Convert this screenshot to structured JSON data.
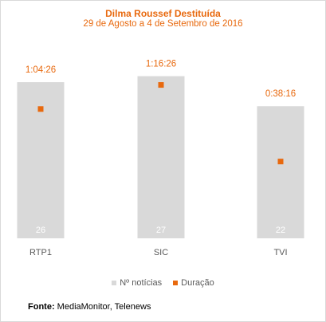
{
  "chart_data": {
    "type": "bar",
    "title": "Dilma Roussef Destituída",
    "subtitle": "29 de Agosto a 4 de Setembro de 2016",
    "categories": [
      "RTP1",
      "SIC",
      "TVI"
    ],
    "series": [
      {
        "name": "Nº notícias",
        "type": "bar",
        "values": [
          26,
          27,
          22
        ],
        "color": "#d9d9d9",
        "ylim": [
          0,
          28.4
        ]
      },
      {
        "name": "Duração",
        "type": "scatter",
        "labels": [
          "1:04:26",
          "1:16:26",
          "0:38:16"
        ],
        "values_seconds": [
          3866,
          4586,
          2296
        ],
        "color": "#e8690e",
        "ylim": [
          0,
          5100
        ]
      }
    ],
    "grid": false,
    "legend_position": "bottom"
  },
  "source": {
    "label": "Fonte:",
    "text": "MediaMonitor, Telenews"
  }
}
